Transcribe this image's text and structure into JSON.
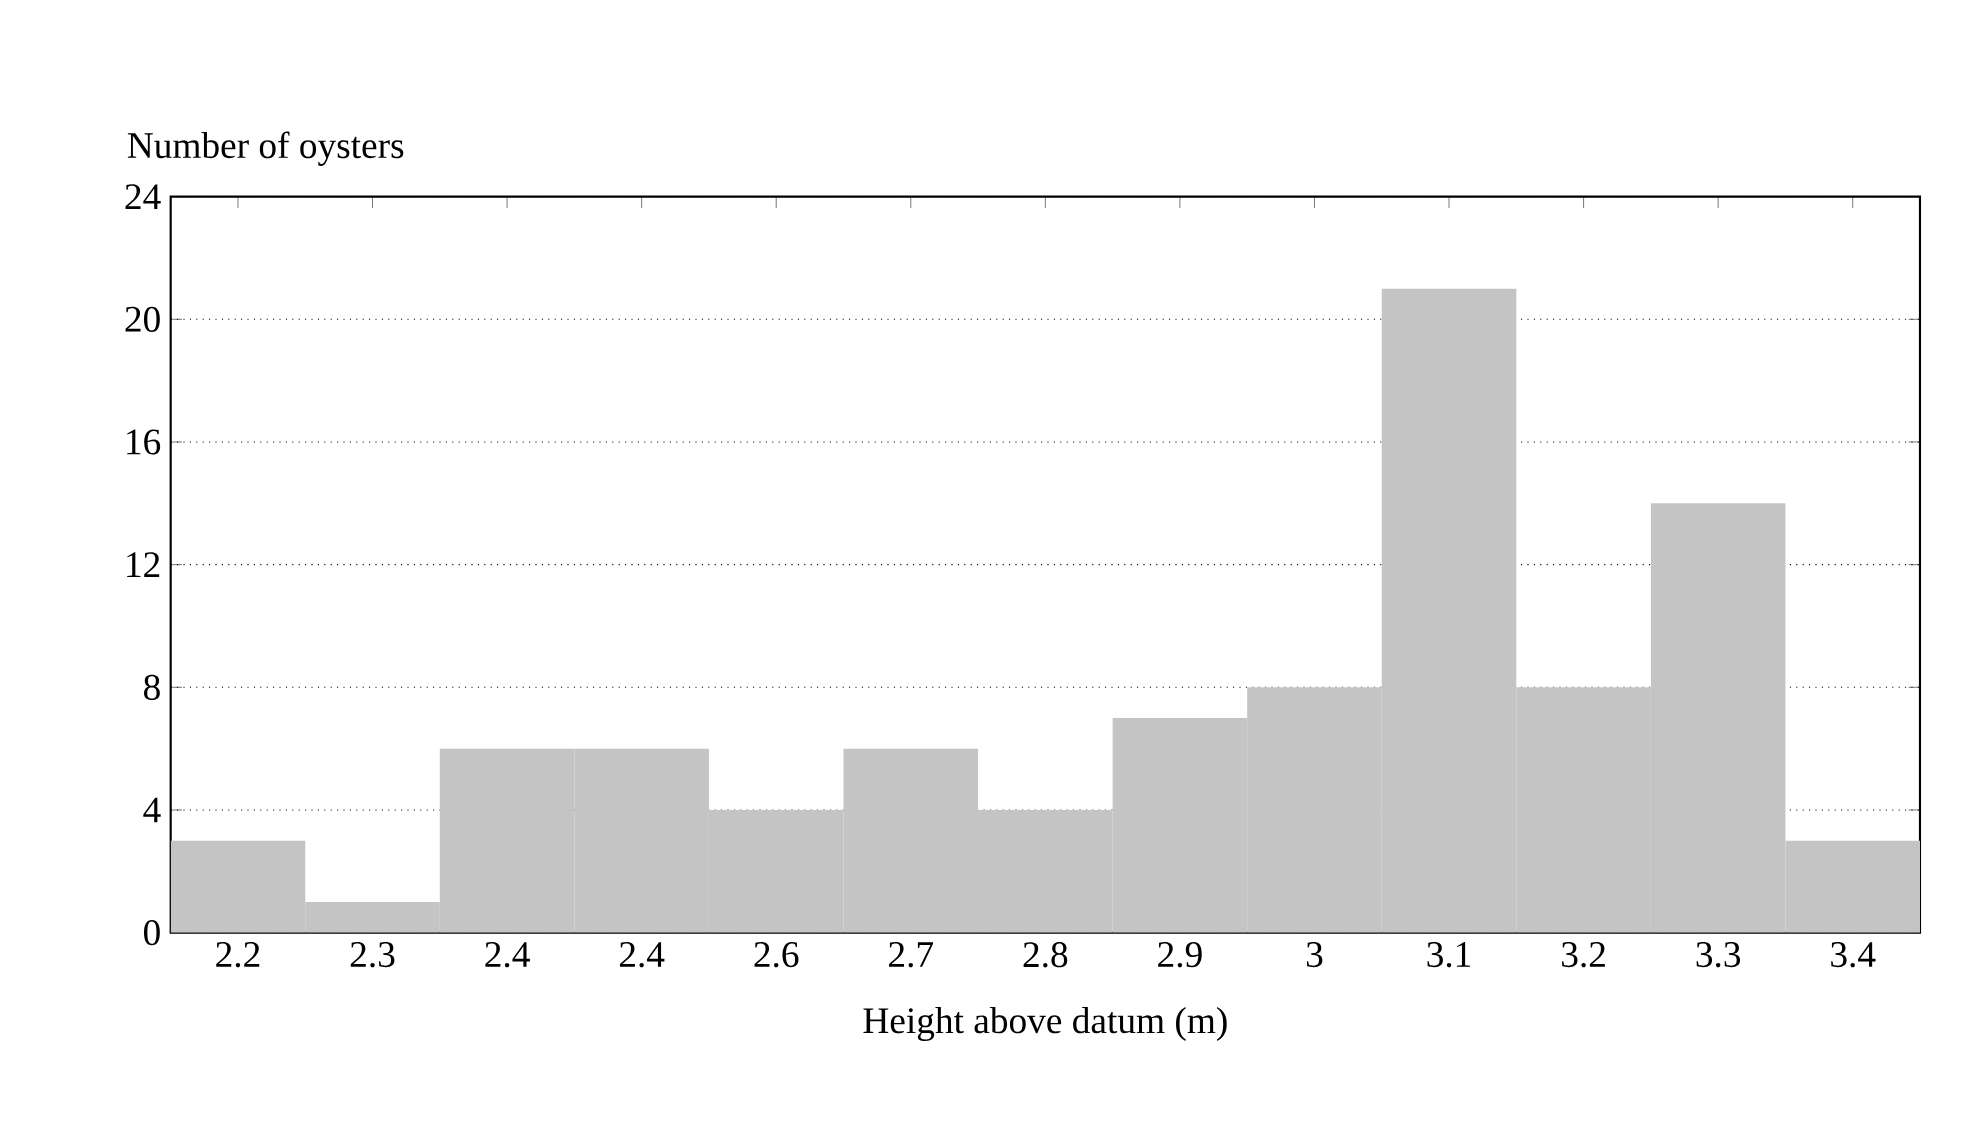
{
  "chart_data": {
    "type": "bar",
    "ylabel": "Number of oysters",
    "xlabel": "Height above datum (m)",
    "categories": [
      "2.2",
      "2.3",
      "2.4",
      "2.4",
      "2.6",
      "2.7",
      "2.8",
      "2.9",
      "3",
      "3.1",
      "3.2",
      "3.3",
      "3.4"
    ],
    "values": [
      3,
      1,
      6,
      6,
      4,
      6,
      4,
      7,
      8,
      21,
      8,
      14,
      3
    ],
    "color": "#c4c4c4",
    "ylim": [
      0,
      24
    ],
    "yticks": [
      0,
      4,
      8,
      12,
      16,
      20,
      24
    ],
    "grid": "y"
  }
}
